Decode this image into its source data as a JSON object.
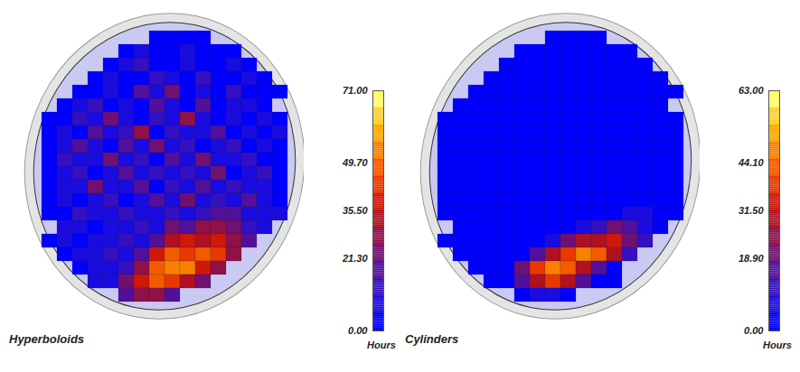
{
  "chart_data": [
    {
      "type": "heatmap",
      "title": "Hyperboloids",
      "colorbar": {
        "label": "Hours",
        "range": [
          0,
          71
        ],
        "ticks": [
          {
            "value": 0,
            "label": "0.00"
          },
          {
            "value": 21.3,
            "label": "21.30"
          },
          {
            "value": 35.5,
            "label": "35.50"
          },
          {
            "value": 49.7,
            "label": "49.70"
          },
          {
            "value": 71,
            "label": "71.00"
          }
        ]
      },
      "cells": [
        [
          null,
          null,
          null,
          null,
          null,
          null,
          null,
          3,
          5,
          2,
          4,
          null,
          null,
          null,
          null,
          null
        ],
        [
          null,
          null,
          null,
          null,
          null,
          4,
          8,
          3,
          2,
          6,
          3,
          5,
          2,
          null,
          null,
          null
        ],
        [
          null,
          null,
          null,
          null,
          2,
          6,
          12,
          4,
          3,
          9,
          2,
          4,
          7,
          3,
          null,
          null
        ],
        [
          null,
          null,
          null,
          3,
          8,
          4,
          2,
          14,
          6,
          3,
          11,
          5,
          2,
          6,
          4,
          null
        ],
        [
          null,
          null,
          2,
          5,
          10,
          3,
          18,
          6,
          24,
          4,
          8,
          3,
          12,
          4,
          3,
          2
        ],
        [
          null,
          3,
          7,
          12,
          4,
          9,
          3,
          20,
          8,
          5,
          16,
          4,
          6,
          9,
          2,
          null
        ],
        [
          2,
          5,
          14,
          6,
          22,
          8,
          4,
          12,
          6,
          26,
          7,
          3,
          10,
          5,
          8,
          3
        ],
        [
          4,
          9,
          5,
          18,
          7,
          12,
          28,
          5,
          14,
          6,
          9,
          20,
          4,
          7,
          3,
          6
        ],
        [
          3,
          6,
          20,
          8,
          4,
          16,
          9,
          22,
          7,
          11,
          5,
          8,
          14,
          4,
          9,
          2
        ],
        [
          5,
          12,
          7,
          10,
          24,
          6,
          13,
          4,
          18,
          8,
          21,
          6,
          9,
          12,
          5,
          4
        ],
        [
          2,
          8,
          15,
          5,
          9,
          20,
          7,
          11,
          6,
          15,
          7,
          24,
          5,
          8,
          14,
          3
        ],
        [
          4,
          6,
          9,
          22,
          6,
          8,
          17,
          5,
          12,
          9,
          18,
          6,
          11,
          7,
          6,
          5
        ],
        [
          3,
          10,
          5,
          7,
          13,
          5,
          9,
          19,
          8,
          23,
          10,
          14,
          8,
          16,
          9,
          4
        ],
        [
          5,
          4,
          12,
          8,
          6,
          11,
          6,
          10,
          15,
          7,
          12,
          20,
          16,
          10,
          6,
          8
        ],
        [
          null,
          6,
          8,
          5,
          10,
          7,
          13,
          8,
          22,
          18,
          26,
          30,
          22,
          14,
          7,
          null
        ],
        [
          3,
          7,
          4,
          9,
          6,
          12,
          9,
          18,
          32,
          38,
          34,
          40,
          30,
          18,
          null,
          null
        ],
        [
          null,
          5,
          8,
          6,
          11,
          8,
          20,
          36,
          48,
          44,
          50,
          42,
          28,
          null,
          null,
          null
        ],
        [
          null,
          null,
          4,
          7,
          9,
          14,
          30,
          46,
          52,
          54,
          40,
          26,
          null,
          null,
          null,
          null
        ],
        [
          null,
          null,
          null,
          6,
          10,
          22,
          40,
          50,
          44,
          34,
          22,
          null,
          null,
          null,
          null,
          null
        ],
        [
          null,
          null,
          null,
          null,
          null,
          18,
          30,
          28,
          20,
          null,
          null,
          null,
          null,
          null,
          null,
          null
        ]
      ]
    },
    {
      "type": "heatmap",
      "title": "Cylinders",
      "colorbar": {
        "label": "Hours",
        "range": [
          0,
          63
        ],
        "ticks": [
          {
            "value": 0,
            "label": "0.00"
          },
          {
            "value": 18.9,
            "label": "18.90"
          },
          {
            "value": 31.5,
            "label": "31.50"
          },
          {
            "value": 44.1,
            "label": "44.10"
          },
          {
            "value": 63,
            "label": "63.00"
          }
        ]
      },
      "cells": [
        [
          null,
          null,
          null,
          null,
          null,
          null,
          null,
          0,
          0,
          0,
          0,
          null,
          null,
          null,
          null,
          null
        ],
        [
          null,
          null,
          null,
          null,
          null,
          0,
          0,
          1,
          0,
          0,
          0,
          0,
          0,
          null,
          null,
          null
        ],
        [
          null,
          null,
          null,
          null,
          0,
          0,
          0,
          0,
          0,
          0,
          0,
          0,
          0,
          0,
          null,
          null
        ],
        [
          null,
          null,
          null,
          0,
          0,
          0,
          0,
          1,
          0,
          0,
          0,
          0,
          0,
          0,
          0,
          null
        ],
        [
          null,
          null,
          0,
          0,
          0,
          0,
          0,
          0,
          0,
          0,
          0,
          0,
          0,
          0,
          0,
          0
        ],
        [
          null,
          0,
          0,
          0,
          0,
          0,
          0,
          0,
          0,
          0,
          0,
          0,
          0,
          0,
          0,
          null
        ],
        [
          0,
          0,
          0,
          0,
          0,
          0,
          0,
          0,
          0,
          0,
          0,
          0,
          0,
          0,
          0,
          0
        ],
        [
          0,
          0,
          0,
          0,
          0,
          0,
          1,
          0,
          0,
          0,
          0,
          0,
          0,
          0,
          0,
          0
        ],
        [
          0,
          0,
          0,
          0,
          0,
          0,
          0,
          0,
          0,
          0,
          0,
          0,
          0,
          0,
          0,
          0
        ],
        [
          0,
          0,
          0,
          0,
          0,
          0,
          0,
          0,
          0,
          0,
          1,
          0,
          0,
          0,
          0,
          0
        ],
        [
          0,
          0,
          0,
          0,
          0,
          0,
          0,
          0,
          0,
          0,
          0,
          0,
          0,
          0,
          0,
          0
        ],
        [
          0,
          0,
          0,
          0,
          0,
          0,
          0,
          0,
          0,
          0,
          0,
          0,
          0,
          0,
          0,
          0
        ],
        [
          0,
          0,
          0,
          0,
          0,
          0,
          0,
          3,
          0,
          0,
          0,
          0,
          0,
          2,
          0,
          0
        ],
        [
          0,
          0,
          0,
          0,
          0,
          0,
          0,
          0,
          0,
          0,
          0,
          4,
          8,
          6,
          0,
          0
        ],
        [
          null,
          0,
          0,
          0,
          0,
          0,
          0,
          0,
          2,
          6,
          12,
          18,
          14,
          8,
          2,
          null
        ],
        [
          0,
          0,
          0,
          0,
          0,
          0,
          2,
          8,
          20,
          28,
          30,
          34,
          22,
          10,
          null,
          null
        ],
        [
          null,
          0,
          0,
          0,
          0,
          2,
          14,
          28,
          40,
          46,
          42,
          30,
          12,
          null,
          null,
          null
        ],
        [
          null,
          null,
          0,
          0,
          4,
          22,
          36,
          48,
          44,
          30,
          14,
          4,
          null,
          null,
          null,
          null
        ],
        [
          null,
          null,
          null,
          0,
          2,
          16,
          30,
          38,
          28,
          14,
          2,
          0,
          null,
          null,
          null,
          null
        ],
        [
          null,
          null,
          null,
          null,
          null,
          0,
          8,
          6,
          2,
          null,
          null,
          null,
          null,
          null,
          null,
          null
        ]
      ]
    }
  ]
}
